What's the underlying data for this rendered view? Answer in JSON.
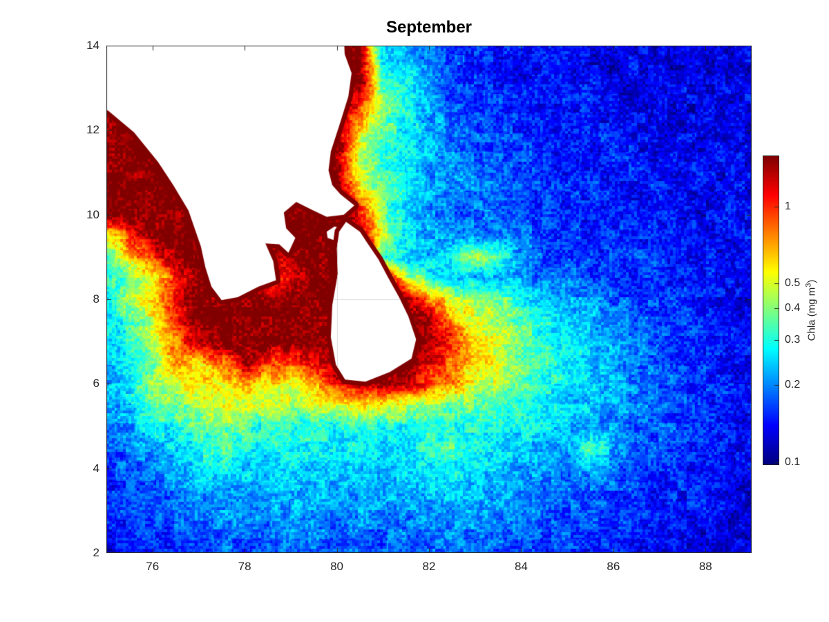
{
  "title": "September",
  "axes": {
    "x_ticks": [
      76,
      78,
      80,
      82,
      84,
      86,
      88
    ],
    "y_ticks": [
      14,
      12,
      10,
      8,
      6,
      4,
      2
    ],
    "x_range": [
      75,
      89
    ],
    "y_range": [
      2,
      14
    ]
  },
  "colorbar": {
    "ticks": [
      1,
      0.5,
      0.4,
      0.3,
      0.2,
      0.1
    ],
    "tick_labels": [
      "1",
      "0.5",
      "0.4",
      "0.3",
      "0.2",
      "0.1"
    ],
    "label_prefix": "Chla (mg m",
    "label_sup": "3",
    "label_suffix": ")",
    "scale": "log",
    "vmin": 0.098,
    "vmax": 1.57,
    "colormap": "jet"
  },
  "colors": {
    "background": "#ffffff",
    "axis": "#262626",
    "grid_line": "#dcdcdc",
    "land": "#ffffff",
    "coast_rim": "#800000",
    "title_color": "#000000"
  },
  "chart_data": {
    "type": "heatmap",
    "title": "September",
    "xlabel": "",
    "ylabel": "",
    "units": "mg m^3 (chlorophyll-a)",
    "x_is": "longitude_deg_E",
    "y_is": "latitude_deg_N",
    "lon": [
      75,
      75.5,
      76,
      76.5,
      77,
      77.5,
      78,
      78.5,
      79,
      79.5,
      80,
      80.5,
      81,
      81.5,
      82,
      82.5,
      83,
      83.5,
      84,
      84.5,
      85,
      85.5,
      86,
      86.5,
      87,
      87.5,
      88,
      88.5,
      89
    ],
    "lat": [
      14,
      13.5,
      13,
      12.5,
      12,
      11.5,
      11,
      10.5,
      10,
      9.5,
      9,
      8.5,
      8,
      7.5,
      7,
      6.5,
      6,
      5.5,
      5,
      4.5,
      4,
      3.5,
      3,
      2.5,
      2
    ],
    "values": [
      [
        1.6,
        1.6,
        1.6,
        1.6,
        1.6,
        1.6,
        1.6,
        1.6,
        1.6,
        1.6,
        1.6,
        1.6,
        0.25,
        0.22,
        0.2,
        0.18,
        0.16,
        0.15,
        0.14,
        0.15,
        0.14,
        0.13,
        0.14,
        0.13,
        0.12,
        0.13,
        0.12,
        0.13,
        0.12
      ],
      [
        1.6,
        1.6,
        1.6,
        1.6,
        1.6,
        1.6,
        1.6,
        1.6,
        1.6,
        1.6,
        1.6,
        1.6,
        0.3,
        0.25,
        0.2,
        0.17,
        0.15,
        0.14,
        0.13,
        0.14,
        0.15,
        0.13,
        0.12,
        0.14,
        0.13,
        0.12,
        0.13,
        0.12,
        0.13
      ],
      [
        1.6,
        1.6,
        1.6,
        1.6,
        1.6,
        1.6,
        1.6,
        1.6,
        1.6,
        1.6,
        1.6,
        1.6,
        0.35,
        0.28,
        0.2,
        0.17,
        0.16,
        0.15,
        0.14,
        0.13,
        0.14,
        0.15,
        0.13,
        0.12,
        0.13,
        0.14,
        0.12,
        0.13,
        0.14
      ],
      [
        1.6,
        1.6,
        1.6,
        1.6,
        1.6,
        1.6,
        1.6,
        1.6,
        1.6,
        1.6,
        1.6,
        0.9,
        0.4,
        0.3,
        0.22,
        0.18,
        0.17,
        0.16,
        0.15,
        0.14,
        0.15,
        0.14,
        0.13,
        0.14,
        0.13,
        0.12,
        0.13,
        0.12,
        0.13
      ],
      [
        1.6,
        1.6,
        1.6,
        1.6,
        1.6,
        1.6,
        1.6,
        1.6,
        1.6,
        1.6,
        1.6,
        0.6,
        0.35,
        0.28,
        0.22,
        0.2,
        0.18,
        0.16,
        0.15,
        0.16,
        0.14,
        0.15,
        0.14,
        0.13,
        0.14,
        0.13,
        0.14,
        0.13,
        0.12
      ],
      [
        1.6,
        1.6,
        1.6,
        1.6,
        1.6,
        1.6,
        1.6,
        1.6,
        1.6,
        1.6,
        1.6,
        0.45,
        0.3,
        0.25,
        0.22,
        0.2,
        0.18,
        0.17,
        0.16,
        0.15,
        0.16,
        0.14,
        0.15,
        0.14,
        0.13,
        0.14,
        0.13,
        0.14,
        0.13
      ],
      [
        1.6,
        1.6,
        1.6,
        1.6,
        1.6,
        1.6,
        1.6,
        1.6,
        1.6,
        1.6,
        1.6,
        0.5,
        0.32,
        0.26,
        0.22,
        0.2,
        0.19,
        0.17,
        0.16,
        0.15,
        0.14,
        0.15,
        0.14,
        0.15,
        0.14,
        0.13,
        0.14,
        0.13,
        0.14
      ],
      [
        1.6,
        1.6,
        1.6,
        1.6,
        1.6,
        1.6,
        1.6,
        1.6,
        1.6,
        1.6,
        1.6,
        0.6,
        0.35,
        0.28,
        0.22,
        0.2,
        0.2,
        0.18,
        0.17,
        0.16,
        0.15,
        0.16,
        0.15,
        0.14,
        0.15,
        0.14,
        0.13,
        0.14,
        0.13
      ],
      [
        1.6,
        1.6,
        1.6,
        1.6,
        1.6,
        1.6,
        1.6,
        1.6,
        1.6,
        1.6,
        1.6,
        1.2,
        0.4,
        0.25,
        0.2,
        0.18,
        0.18,
        0.19,
        0.17,
        0.16,
        0.15,
        0.14,
        0.15,
        0.14,
        0.15,
        0.14,
        0.13,
        0.14,
        0.13
      ],
      [
        0.5,
        1.0,
        1.6,
        1.6,
        1.6,
        1.6,
        1.6,
        1.6,
        1.6,
        1.6,
        1.6,
        1.6,
        0.5,
        0.28,
        0.22,
        0.2,
        0.2,
        0.19,
        0.18,
        0.17,
        0.16,
        0.15,
        0.16,
        0.15,
        0.14,
        0.15,
        0.14,
        0.13,
        0.14
      ],
      [
        0.35,
        0.6,
        1.0,
        1.6,
        1.6,
        1.6,
        1.6,
        1.2,
        1.4,
        1.6,
        1.6,
        1.6,
        0.3,
        0.25,
        0.22,
        0.3,
        0.5,
        0.35,
        0.2,
        0.18,
        0.17,
        0.16,
        0.15,
        0.16,
        0.15,
        0.14,
        0.15,
        0.14,
        0.13
      ],
      [
        0.28,
        0.4,
        0.5,
        1.0,
        1.6,
        1.6,
        1.6,
        1.0,
        1.3,
        1.6,
        1.6,
        1.6,
        1.6,
        0.5,
        0.3,
        0.25,
        0.22,
        0.22,
        0.2,
        0.19,
        0.18,
        0.17,
        0.16,
        0.15,
        0.16,
        0.15,
        0.14,
        0.15,
        0.14
      ],
      [
        0.3,
        0.45,
        0.6,
        1.2,
        1.6,
        1.6,
        1.6,
        1.6,
        1.6,
        1.6,
        1.6,
        1.6,
        1.6,
        1.6,
        0.8,
        0.5,
        0.45,
        0.4,
        0.3,
        0.25,
        0.22,
        0.2,
        0.18,
        0.17,
        0.16,
        0.15,
        0.14,
        0.13,
        0.13
      ],
      [
        0.25,
        0.35,
        0.5,
        1.0,
        1.6,
        1.6,
        1.6,
        1.6,
        1.6,
        1.6,
        1.6,
        1.6,
        1.6,
        1.6,
        1.4,
        0.7,
        0.5,
        0.45,
        0.35,
        0.28,
        0.25,
        0.22,
        0.2,
        0.18,
        0.17,
        0.16,
        0.15,
        0.14,
        0.13
      ],
      [
        0.25,
        0.3,
        0.45,
        0.8,
        1.4,
        1.6,
        1.6,
        1.6,
        1.6,
        1.6,
        1.6,
        1.6,
        1.6,
        1.6,
        1.6,
        1.1,
        0.6,
        0.5,
        0.4,
        0.3,
        0.26,
        0.24,
        0.22,
        0.2,
        0.18,
        0.17,
        0.15,
        0.14,
        0.14
      ],
      [
        0.22,
        0.3,
        0.35,
        0.9,
        0.6,
        0.8,
        1.4,
        1.0,
        0.9,
        1.2,
        1.6,
        1.6,
        1.6,
        1.6,
        1.2,
        0.8,
        0.6,
        0.5,
        0.4,
        0.32,
        0.28,
        0.25,
        0.22,
        0.2,
        0.18,
        0.16,
        0.15,
        0.14,
        0.13
      ],
      [
        0.22,
        0.28,
        0.45,
        0.5,
        0.6,
        0.55,
        0.7,
        0.6,
        0.55,
        0.7,
        1.0,
        1.5,
        1.5,
        1.4,
        1.0,
        0.7,
        0.5,
        0.45,
        0.38,
        0.3,
        0.27,
        0.24,
        0.22,
        0.2,
        0.18,
        0.16,
        0.15,
        0.14,
        0.14
      ],
      [
        0.2,
        0.25,
        0.35,
        0.4,
        0.45,
        0.5,
        0.45,
        0.5,
        0.45,
        0.5,
        0.55,
        0.6,
        0.55,
        0.5,
        0.45,
        0.4,
        0.38,
        0.35,
        0.3,
        0.28,
        0.25,
        0.23,
        0.21,
        0.2,
        0.18,
        0.17,
        0.16,
        0.15,
        0.14
      ],
      [
        0.18,
        0.22,
        0.28,
        0.3,
        0.35,
        0.4,
        0.35,
        0.3,
        0.32,
        0.3,
        0.3,
        0.32,
        0.3,
        0.28,
        0.3,
        0.3,
        0.28,
        0.3,
        0.28,
        0.26,
        0.24,
        0.22,
        0.2,
        0.19,
        0.18,
        0.16,
        0.15,
        0.14,
        0.14
      ],
      [
        0.17,
        0.2,
        0.22,
        0.25,
        0.3,
        0.35,
        0.3,
        0.28,
        0.3,
        0.28,
        0.26,
        0.28,
        0.26,
        0.28,
        0.3,
        0.35,
        0.3,
        0.26,
        0.24,
        0.22,
        0.2,
        0.35,
        0.22,
        0.18,
        0.17,
        0.16,
        0.15,
        0.14,
        0.13
      ],
      [
        0.16,
        0.18,
        0.2,
        0.22,
        0.25,
        0.28,
        0.25,
        0.24,
        0.26,
        0.25,
        0.24,
        0.25,
        0.24,
        0.25,
        0.26,
        0.28,
        0.26,
        0.24,
        0.22,
        0.21,
        0.2,
        0.22,
        0.19,
        0.17,
        0.16,
        0.15,
        0.14,
        0.14,
        0.13
      ],
      [
        0.15,
        0.17,
        0.18,
        0.2,
        0.22,
        0.24,
        0.22,
        0.23,
        0.24,
        0.23,
        0.22,
        0.23,
        0.22,
        0.23,
        0.24,
        0.25,
        0.24,
        0.22,
        0.21,
        0.2,
        0.19,
        0.18,
        0.17,
        0.16,
        0.15,
        0.15,
        0.14,
        0.13,
        0.13
      ],
      [
        0.15,
        0.16,
        0.17,
        0.18,
        0.2,
        0.21,
        0.2,
        0.21,
        0.22,
        0.21,
        0.2,
        0.21,
        0.2,
        0.21,
        0.22,
        0.22,
        0.21,
        0.2,
        0.2,
        0.19,
        0.18,
        0.17,
        0.16,
        0.15,
        0.15,
        0.14,
        0.14,
        0.13,
        0.12
      ],
      [
        0.14,
        0.15,
        0.16,
        0.17,
        0.18,
        0.19,
        0.18,
        0.19,
        0.2,
        0.19,
        0.18,
        0.19,
        0.18,
        0.19,
        0.2,
        0.2,
        0.19,
        0.18,
        0.18,
        0.17,
        0.17,
        0.16,
        0.15,
        0.15,
        0.14,
        0.14,
        0.13,
        0.13,
        0.12
      ],
      [
        0.13,
        0.14,
        0.15,
        0.16,
        0.17,
        0.18,
        0.17,
        0.18,
        0.18,
        0.18,
        0.17,
        0.18,
        0.17,
        0.18,
        0.18,
        0.19,
        0.18,
        0.17,
        0.17,
        0.16,
        0.16,
        0.15,
        0.15,
        0.14,
        0.14,
        0.13,
        0.13,
        0.12,
        0.12
      ]
    ],
    "land_mask_polygons": {
      "india": [
        [
          74.7,
          14.3
        ],
        [
          80.15,
          14.3
        ],
        [
          80.17,
          13.8
        ],
        [
          80.32,
          13.35
        ],
        [
          80.25,
          12.8
        ],
        [
          80.05,
          12.1
        ],
        [
          79.87,
          11.5
        ],
        [
          79.82,
          11.05
        ],
        [
          79.9,
          10.7
        ],
        [
          80.08,
          10.48
        ],
        [
          80.38,
          10.22
        ],
        [
          80.15,
          10.0
        ],
        [
          79.78,
          9.95
        ],
        [
          79.45,
          10.12
        ],
        [
          79.12,
          10.3
        ],
        [
          78.85,
          10.05
        ],
        [
          78.9,
          9.68
        ],
        [
          79.1,
          9.45
        ],
        [
          78.95,
          9.1
        ],
        [
          78.75,
          9.3
        ],
        [
          78.45,
          9.32
        ],
        [
          78.62,
          8.9
        ],
        [
          78.68,
          8.45
        ],
        [
          78.3,
          8.3
        ],
        [
          77.85,
          8.05
        ],
        [
          77.5,
          7.98
        ],
        [
          77.28,
          8.3
        ],
        [
          77.15,
          8.75
        ],
        [
          77.05,
          9.25
        ],
        [
          76.78,
          10.1
        ],
        [
          76.45,
          10.7
        ],
        [
          76.12,
          11.25
        ],
        [
          75.6,
          11.95
        ],
        [
          75.05,
          12.45
        ],
        [
          74.7,
          12.7
        ]
      ],
      "jaffna_patch": [
        [
          79.78,
          9.6
        ],
        [
          79.95,
          9.72
        ],
        [
          80.18,
          9.68
        ],
        [
          80.22,
          9.5
        ],
        [
          79.98,
          9.38
        ],
        [
          79.8,
          9.45
        ]
      ],
      "sri_lanka": [
        [
          80.2,
          9.83
        ],
        [
          80.5,
          9.6
        ],
        [
          80.68,
          9.3
        ],
        [
          80.9,
          8.95
        ],
        [
          81.12,
          8.5
        ],
        [
          81.35,
          8.05
        ],
        [
          81.55,
          7.6
        ],
        [
          81.72,
          7.05
        ],
        [
          81.62,
          6.6
        ],
        [
          81.15,
          6.28
        ],
        [
          80.62,
          6.05
        ],
        [
          80.18,
          6.1
        ],
        [
          79.98,
          6.45
        ],
        [
          79.87,
          7.1
        ],
        [
          79.9,
          7.85
        ],
        [
          80.02,
          8.6
        ],
        [
          80.0,
          9.2
        ],
        [
          80.05,
          9.6
        ]
      ]
    },
    "grid_on": true,
    "color_scale": "log",
    "clim": [
      0.098,
      1.57
    ],
    "legend_position": "right-colorbar"
  }
}
